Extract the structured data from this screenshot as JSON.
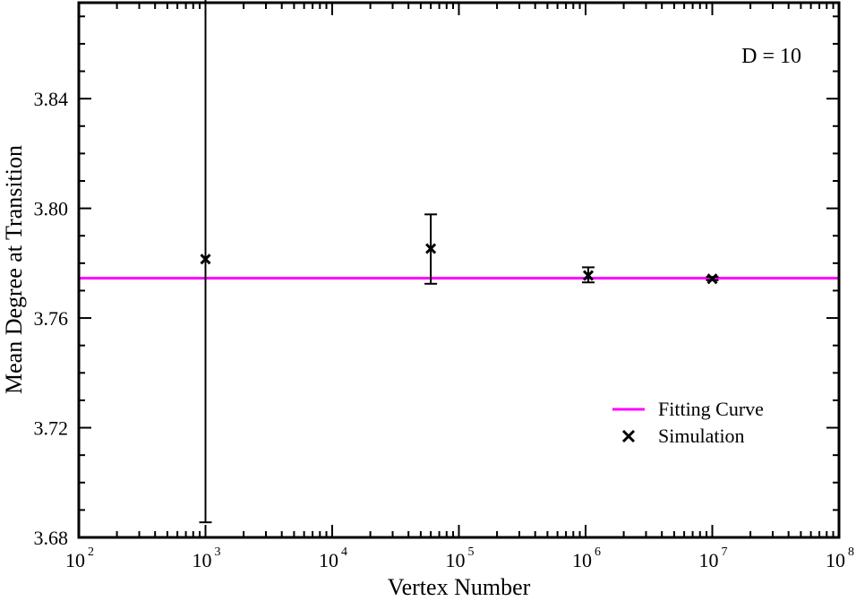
{
  "chart_data": {
    "type": "scatter",
    "title": "",
    "xlabel": "Vertex Number",
    "ylabel": "Mean Degree at Transition",
    "x_scale": "log",
    "xlim": [
      100,
      100000000
    ],
    "ylim": [
      3.68,
      3.875
    ],
    "x_ticks": [
      {
        "base": "10",
        "exp": "2"
      },
      {
        "base": "10",
        "exp": "3"
      },
      {
        "base": "10",
        "exp": "4"
      },
      {
        "base": "10",
        "exp": "5"
      },
      {
        "base": "10",
        "exp": "6"
      },
      {
        "base": "10",
        "exp": "7"
      },
      {
        "base": "10",
        "exp": "8"
      }
    ],
    "y_ticks": [
      "3.68",
      "3.72",
      "3.76",
      "3.80",
      "3.84"
    ],
    "annotation": "D = 10",
    "legend_position": "right",
    "grid": false,
    "series": [
      {
        "name": "Fitting Curve",
        "kind": "line",
        "color": "#ff00ff",
        "x": [
          100,
          100000000
        ],
        "y": [
          3.7745,
          3.7745
        ]
      },
      {
        "name": "Simulation",
        "kind": "scatter",
        "marker": "x",
        "color": "#000000",
        "points": [
          {
            "x": 1000,
            "y": 3.7815,
            "err_low": 3.6855,
            "err_high": 3.8765
          },
          {
            "x": 60000,
            "y": 3.7853,
            "err_low": 3.7725,
            "err_high": 3.7978
          },
          {
            "x": 1050000,
            "y": 3.7755,
            "err_low": 3.773,
            "err_high": 3.7785
          },
          {
            "x": 10000000,
            "y": 3.7743,
            "err_low": 3.7738,
            "err_high": 3.775
          }
        ]
      }
    ]
  }
}
